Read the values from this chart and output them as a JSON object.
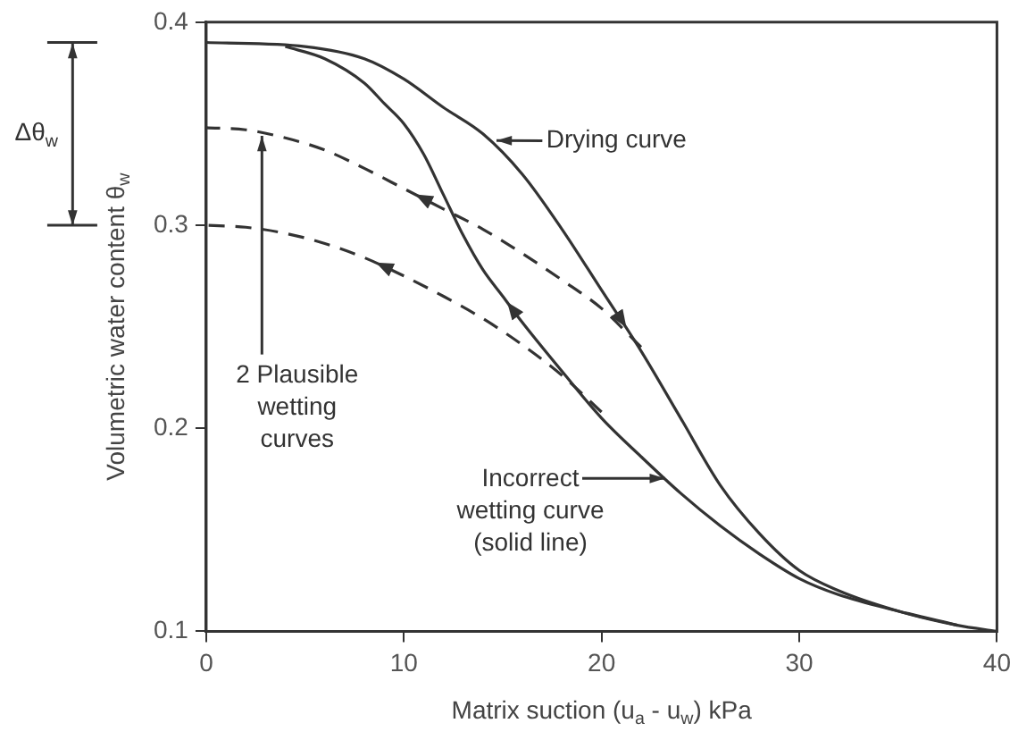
{
  "chart_data": {
    "type": "line",
    "xlabel": "Matrix suction (u$_{a}$ - u$_{w}$) kPa",
    "ylabel": "Volumetric water content θ$_{w}$",
    "xlim": [
      0,
      40
    ],
    "xticks": [
      0,
      10,
      20,
      30,
      40
    ],
    "ylim": [
      0.1,
      0.4
    ],
    "yticks": [
      0.1,
      0.2,
      0.3,
      0.4
    ],
    "grid": false,
    "legend": false,
    "marker": "none",
    "series": [
      {
        "color": "#333333",
        "line_style": "solid",
        "x": [
          0,
          5,
          8,
          10,
          12,
          14,
          16,
          18,
          20,
          22,
          24,
          26,
          28,
          30,
          32,
          35,
          38,
          40
        ],
        "values": [
          0.39,
          0.388,
          0.382,
          0.372,
          0.358,
          0.345,
          0.325,
          0.298,
          0.268,
          0.238,
          0.205,
          0.172,
          0.148,
          0.13,
          0.12,
          0.11,
          0.103,
          0.1
        ]
      },
      {
        "color": "#333333",
        "line_style": "solid",
        "x": [
          38,
          35,
          32,
          30,
          28,
          26,
          24,
          22,
          20,
          18,
          16,
          15,
          14,
          13,
          12,
          11,
          10,
          9,
          8,
          6,
          4
        ],
        "values": [
          0.103,
          0.11,
          0.118,
          0.126,
          0.138,
          0.152,
          0.168,
          0.186,
          0.205,
          0.228,
          0.252,
          0.265,
          0.278,
          0.295,
          0.315,
          0.335,
          0.35,
          0.36,
          0.37,
          0.382,
          0.388
        ]
      },
      {
        "color": "#333333",
        "line_style": "dashed",
        "x": [
          22,
          20,
          18,
          16,
          14,
          12,
          10,
          8,
          6,
          4,
          2,
          0
        ],
        "values": [
          0.24,
          0.259,
          0.273,
          0.286,
          0.298,
          0.308,
          0.318,
          0.328,
          0.337,
          0.343,
          0.347,
          0.348
        ]
      },
      {
        "color": "#333333",
        "line_style": "dashed",
        "x": [
          20,
          18,
          16,
          14,
          12,
          10,
          8,
          6,
          4,
          2,
          0
        ],
        "values": [
          0.208,
          0.226,
          0.241,
          0.254,
          0.265,
          0.275,
          0.284,
          0.291,
          0.296,
          0.299,
          0.3
        ]
      }
    ],
    "annotations": [
      {
        "text": "Drying curve",
        "x": 14.7,
        "y": 0.342
      },
      {
        "text": "2 Plausible wetting curves",
        "x": 2.8,
        "y": 0.346
      },
      {
        "text": "Incorrect wetting curve (solid line)",
        "x": 23.5,
        "y": 0.175
      },
      "Δθ$_{w}$"
    ]
  }
}
